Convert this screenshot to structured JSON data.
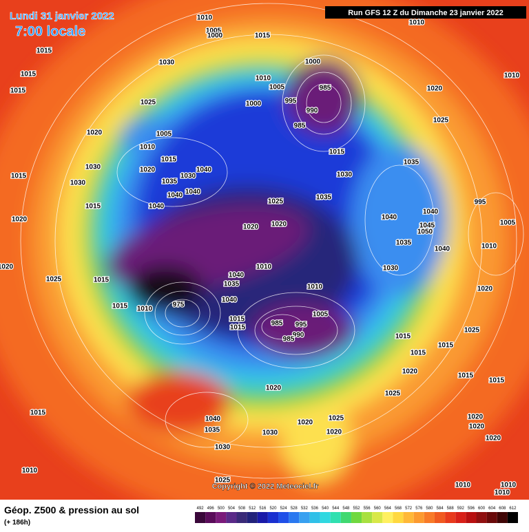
{
  "header": {
    "date": "Lundi 31 janvier 2022",
    "time": "7:00 locale",
    "run": "Run GFS 12 Z du Dimanche 23 janvier 2022"
  },
  "map": {
    "isobar_labels": [
      1010,
      1005,
      1000,
      1015,
      1010,
      1015,
      1030,
      1000,
      1010,
      1015,
      1015,
      1010,
      1005,
      985,
      1020,
      1025,
      1000,
      995,
      990,
      985,
      1025,
      1020,
      1005,
      1010,
      1015,
      1015,
      1035,
      1030,
      1020,
      1040,
      1015,
      1030,
      1035,
      1030,
      1030,
      1040,
      1040,
      1035,
      1025,
      1015,
      1040,
      995,
      1040,
      1040,
      1020,
      1020,
      1020,
      1045,
      1005,
      1050,
      1035,
      1010,
      1040,
      1020,
      1010,
      1030,
      1025,
      1015,
      1040,
      1035,
      1010,
      1020,
      1015,
      1010,
      975,
      1040,
      1005,
      985,
      995,
      1015,
      1015,
      990,
      985,
      1025,
      1015,
      1015,
      1015,
      1020,
      1015,
      1015,
      1020,
      1025,
      1015,
      1040,
      1025,
      1020,
      1020,
      1035,
      1020,
      1030,
      1020,
      1020,
      1030,
      1010,
      1025,
      1010,
      1010,
      1010
    ],
    "copyright": "Copyright © 2022 Meteociel.fr"
  },
  "legend": {
    "title": "Géop. Z500 & pression au sol",
    "subtitle": "(+ 186h)",
    "scale": [
      492,
      496,
      500,
      504,
      508,
      512,
      516,
      520,
      524,
      528,
      532,
      536,
      540,
      544,
      548,
      552,
      556,
      560,
      564,
      568,
      572,
      576,
      580,
      584,
      588,
      592,
      596,
      600,
      604,
      608,
      612
    ],
    "colors": [
      "#3a083a",
      "#5a0c5a",
      "#7a1a7a",
      "#5a2a88",
      "#3a2a78",
      "#22227a",
      "#1a1aa8",
      "#1a30d0",
      "#2050e8",
      "#2a78f0",
      "#38a0f0",
      "#30c0e8",
      "#30d8e0",
      "#30e0b0",
      "#40d870",
      "#70d840",
      "#a8e040",
      "#d8e848",
      "#fff060",
      "#ffd840",
      "#ffb838",
      "#fc9a30",
      "#f87a28",
      "#f05a20",
      "#e83a1c",
      "#d82018",
      "#b81010",
      "#901010",
      "#6a0a0a",
      "#400606",
      "#000000"
    ]
  }
}
